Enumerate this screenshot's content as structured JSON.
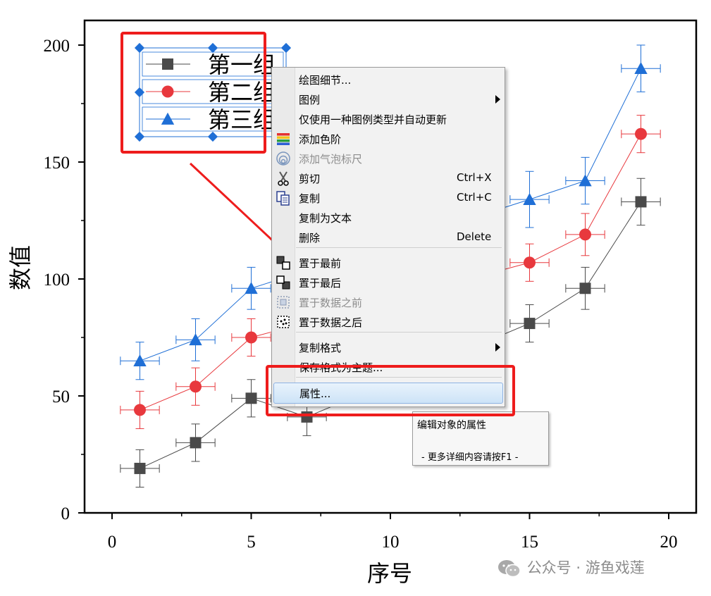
{
  "chart_data": {
    "type": "line",
    "title": "",
    "xlabel": "序号",
    "ylabel": "数值",
    "xlim": [
      -1,
      21
    ],
    "ylim": [
      0,
      210
    ],
    "x_ticks": [
      "0",
      "5",
      "10",
      "15",
      "20"
    ],
    "y_ticks": [
      "0",
      "50",
      "100",
      "150",
      "200"
    ],
    "series": [
      {
        "name": "第一组",
        "color": "#4a4a4a",
        "marker": "square",
        "x": [
          1,
          3,
          5,
          7,
          15,
          17,
          19
        ],
        "y": [
          19,
          30,
          49,
          41,
          81,
          96,
          133
        ],
        "yerr": [
          8,
          8,
          8,
          8,
          8,
          9,
          10
        ],
        "xerr": [
          0.7,
          0.7,
          0.7,
          0.7,
          0.7,
          0.7,
          0.7
        ]
      },
      {
        "name": "第二组",
        "color": "#e8383d",
        "marker": "circle",
        "x": [
          1,
          3,
          5,
          15,
          17,
          19
        ],
        "y": [
          44,
          54,
          75,
          107,
          119,
          162
        ],
        "yerr": [
          8,
          8,
          8,
          8,
          9,
          8
        ],
        "xerr": [
          0.7,
          0.7,
          0.7,
          0.7,
          0.7,
          0.7
        ]
      },
      {
        "name": "第三组",
        "color": "#1f6fd6",
        "marker": "triangle",
        "x": [
          1,
          3,
          5,
          15,
          17,
          19
        ],
        "y": [
          65,
          74,
          96,
          134,
          142,
          190
        ],
        "yerr": [
          8,
          9,
          9,
          12,
          10,
          10
        ],
        "xerr": [
          0.7,
          0.7,
          0.7,
          0.7,
          0.7,
          0.7
        ]
      }
    ],
    "legend": {
      "position": "top-left",
      "labels": [
        "第一组",
        "第二组",
        "第三组"
      ]
    },
    "grid": false
  },
  "context_menu": {
    "items": [
      {
        "label": "绘图细节...",
        "shortcut": "",
        "submenu": false,
        "disabled": false,
        "icon": ""
      },
      {
        "label": "图例",
        "shortcut": "",
        "submenu": true,
        "disabled": false,
        "icon": ""
      },
      {
        "label": "仅使用一种图例类型并自动更新",
        "shortcut": "",
        "submenu": false,
        "disabled": false,
        "icon": ""
      },
      {
        "label": "添加色阶",
        "shortcut": "",
        "submenu": false,
        "disabled": false,
        "icon": "color-scale-icon"
      },
      {
        "label": "添加气泡标尺",
        "shortcut": "",
        "submenu": false,
        "disabled": true,
        "icon": "bubble-scale-icon"
      },
      {
        "label": "剪切",
        "shortcut": "Ctrl+X",
        "submenu": false,
        "disabled": false,
        "icon": "scissors-icon"
      },
      {
        "label": "复制",
        "shortcut": "Ctrl+C",
        "submenu": false,
        "disabled": false,
        "icon": "copy-icon"
      },
      {
        "label": "复制为文本",
        "shortcut": "",
        "submenu": false,
        "disabled": false,
        "icon": ""
      },
      {
        "label": "删除",
        "shortcut": "Delete",
        "submenu": false,
        "disabled": false,
        "icon": ""
      },
      {
        "label": "置于最前",
        "shortcut": "",
        "submenu": false,
        "disabled": false,
        "icon": "bring-to-front-icon"
      },
      {
        "label": "置于最后",
        "shortcut": "",
        "submenu": false,
        "disabled": false,
        "icon": "send-to-back-icon"
      },
      {
        "label": "置于数据之前",
        "shortcut": "",
        "submenu": false,
        "disabled": true,
        "icon": "front-of-data-icon"
      },
      {
        "label": "置于数据之后",
        "shortcut": "",
        "submenu": false,
        "disabled": false,
        "icon": "behind-data-icon"
      },
      {
        "label": "复制格式",
        "shortcut": "",
        "submenu": true,
        "disabled": false,
        "icon": ""
      },
      {
        "label": "保存格式为主题...",
        "shortcut": "",
        "submenu": false,
        "disabled": false,
        "icon": ""
      },
      {
        "label": "属性...",
        "shortcut": "",
        "submenu": false,
        "disabled": false,
        "icon": "",
        "highlighted": true
      }
    ]
  },
  "tooltip": {
    "title": "编辑对象的属性",
    "hint": "- 更多详细内容请按F1 -"
  },
  "watermark": {
    "text": "公众号 · 游鱼戏莲",
    "icon": "wechat-icon"
  },
  "colors": {
    "annotation_red": "#ee1c1c",
    "selection_blue": "#1f6fd6",
    "menu_highlight": "#cde3f7"
  }
}
